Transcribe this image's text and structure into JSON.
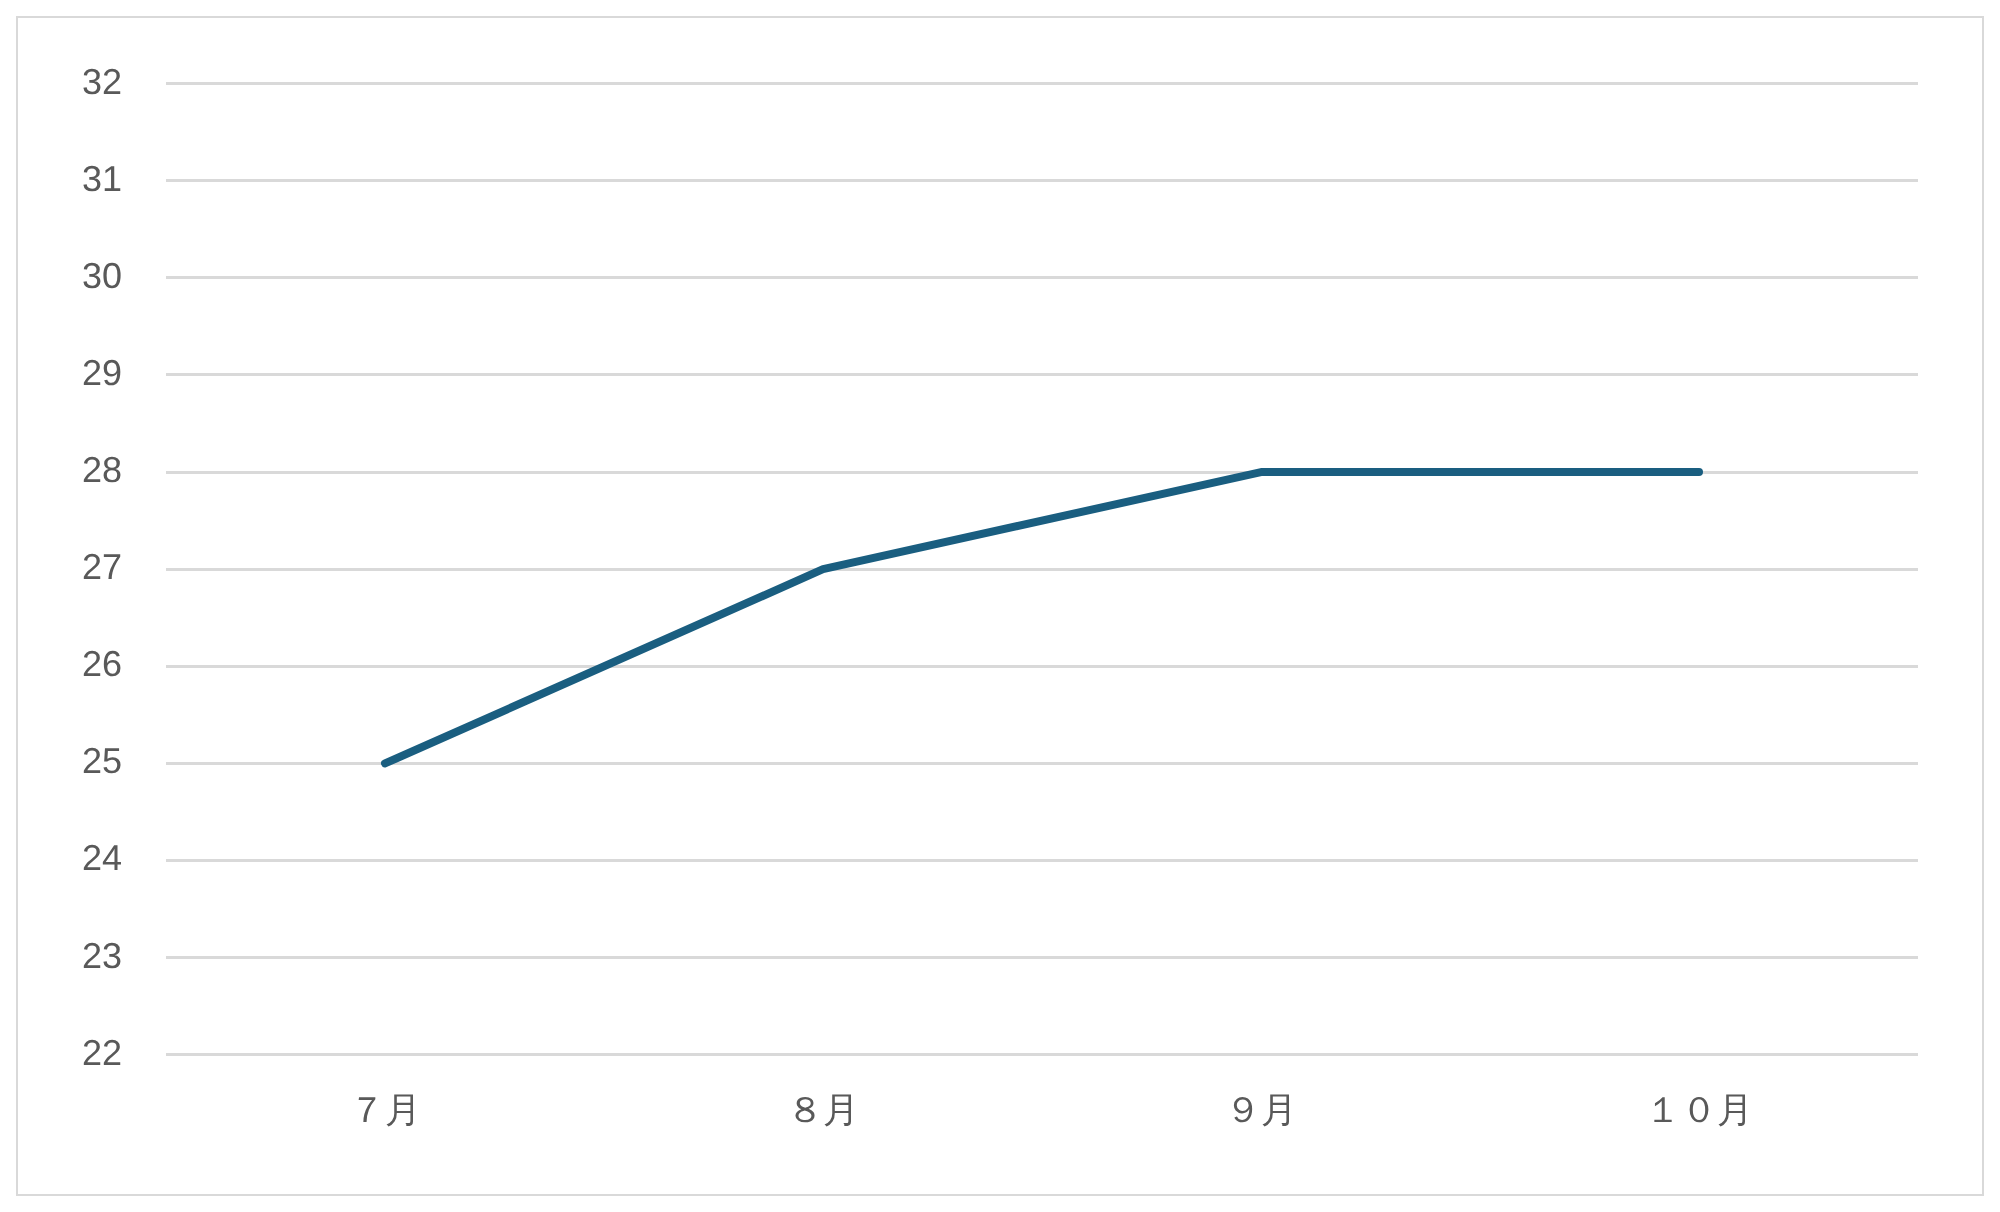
{
  "chart_data": {
    "type": "line",
    "categories": [
      "７月",
      "８月",
      "９月",
      "１０月"
    ],
    "series": [
      {
        "color": "#1a5e80",
        "values": [
          25,
          27,
          28,
          28
        ]
      }
    ],
    "ylim": [
      22,
      32
    ],
    "yticks": [
      22,
      23,
      24,
      25,
      26,
      27,
      28,
      29,
      30,
      31,
      32
    ],
    "grid": "y",
    "marker": "none",
    "line_style": "solid",
    "legend": false
  }
}
